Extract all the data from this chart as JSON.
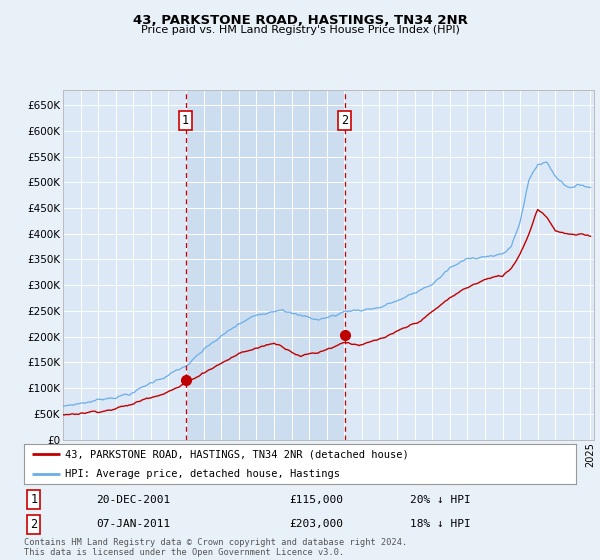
{
  "title": "43, PARKSTONE ROAD, HASTINGS, TN34 2NR",
  "subtitle": "Price paid vs. HM Land Registry's House Price Index (HPI)",
  "bg_color": "#e8f0f8",
  "plot_bg_color": "#dce8f5",
  "shaded_bg_color": "#ccddf0",
  "grid_color": "#ffffff",
  "sale1_date": 2001.97,
  "sale1_price": 115000,
  "sale1_text": "20-DEC-2001",
  "sale1_amount": "£115,000",
  "sale1_hpi_pct": "20% ↓ HPI",
  "sale2_date": 2011.03,
  "sale2_price": 203000,
  "sale2_text": "07-JAN-2011",
  "sale2_amount": "£203,000",
  "sale2_hpi_pct": "18% ↓ HPI",
  "legend_line1": "43, PARKSTONE ROAD, HASTINGS, TN34 2NR (detached house)",
  "legend_line2": "HPI: Average price, detached house, Hastings",
  "footnote": "Contains HM Land Registry data © Crown copyright and database right 2024.\nThis data is licensed under the Open Government Licence v3.0.",
  "ylabel_ticks": [
    "£0",
    "£50K",
    "£100K",
    "£150K",
    "£200K",
    "£250K",
    "£300K",
    "£350K",
    "£400K",
    "£450K",
    "£500K",
    "£550K",
    "£600K",
    "£650K"
  ],
  "ylim": [
    0,
    680000
  ],
  "xlim_start": 1995.3,
  "xlim_end": 2025.2,
  "hpi_color": "#6aaee8",
  "price_color": "#c00000",
  "vline_color": "#cc0000",
  "box_edge_color": "#cc0000"
}
